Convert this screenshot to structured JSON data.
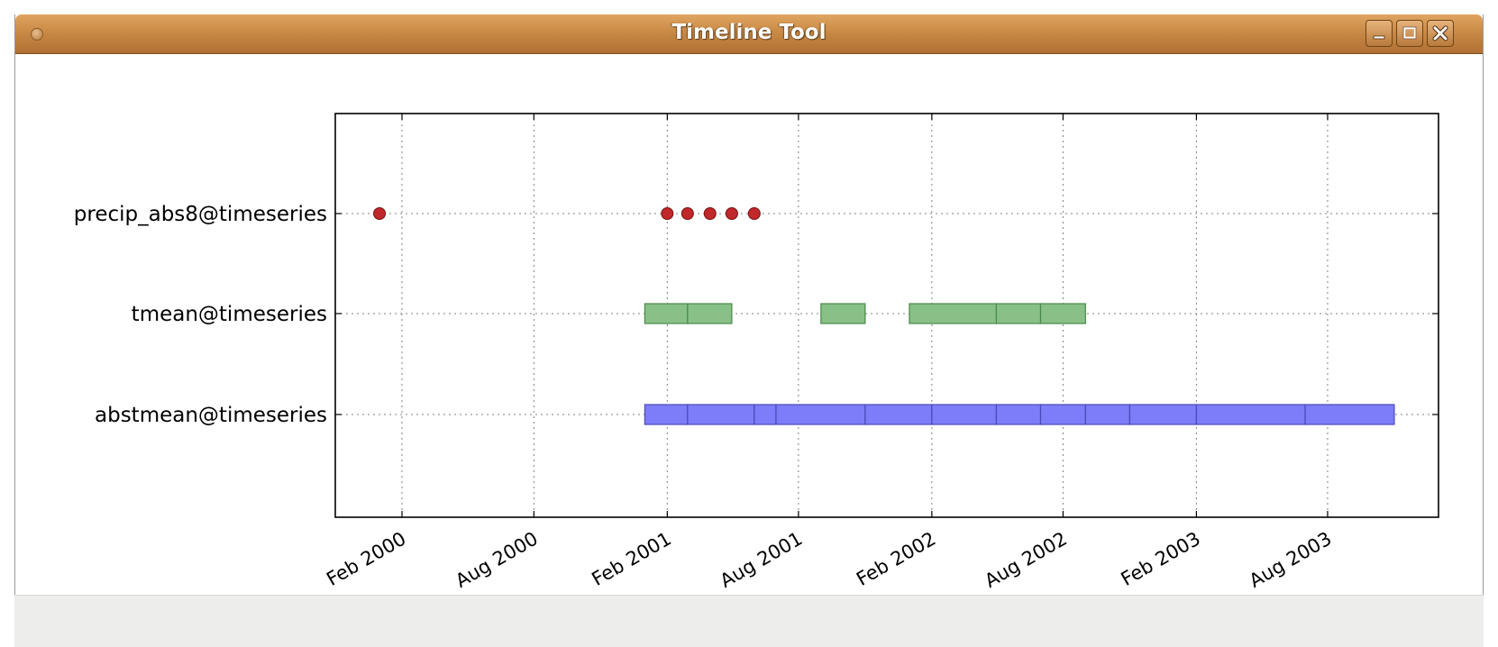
{
  "window": {
    "title": "Timeline Tool"
  },
  "chart_data": {
    "type": "scatter",
    "title": "",
    "xlabel": "",
    "ylabel": "",
    "x_axis_type": "date",
    "xlim": [
      "1999-11-01",
      "2004-01-01"
    ],
    "x_ticks": [
      "2000-02-01",
      "2000-08-01",
      "2001-02-01",
      "2001-08-01",
      "2002-02-01",
      "2002-08-01",
      "2003-02-01",
      "2003-08-01"
    ],
    "x_tick_labels": [
      "Feb 2000",
      "Aug 2000",
      "Feb 2001",
      "Aug 2001",
      "Feb 2002",
      "Aug 2002",
      "Feb 2003",
      "Aug 2003"
    ],
    "categories": [
      "precip_abs8@timeseries",
      "tmean@timeseries",
      "abstmean@timeseries"
    ],
    "grid": true,
    "series": [
      {
        "category": "precip_abs8@timeseries",
        "marker": "point",
        "color": "#c0282a",
        "points": [
          "2000-01-01",
          "2001-02-01",
          "2001-03-01",
          "2001-04-01",
          "2001-05-01",
          "2001-06-01"
        ]
      },
      {
        "category": "tmean@timeseries",
        "marker": "bar",
        "color": "#88c088",
        "edge": "#4a8a4a",
        "intervals": [
          [
            "2001-01-01",
            "2001-03-01"
          ],
          [
            "2001-03-01",
            "2001-05-01"
          ],
          [
            "2001-09-01",
            "2001-11-01"
          ],
          [
            "2002-01-01",
            "2002-05-01"
          ],
          [
            "2002-05-01",
            "2002-07-01"
          ],
          [
            "2002-07-01",
            "2002-09-01"
          ]
        ]
      },
      {
        "category": "abstmean@timeseries",
        "marker": "bar",
        "color": "#7d7dfa",
        "edge": "#4a4ab5",
        "intervals": [
          [
            "2001-01-01",
            "2001-03-01"
          ],
          [
            "2001-03-01",
            "2001-06-01"
          ],
          [
            "2001-06-01",
            "2001-07-01"
          ],
          [
            "2001-07-01",
            "2001-11-01"
          ],
          [
            "2001-11-01",
            "2002-02-01"
          ],
          [
            "2002-02-01",
            "2002-05-01"
          ],
          [
            "2002-05-01",
            "2002-07-01"
          ],
          [
            "2002-07-01",
            "2002-09-01"
          ],
          [
            "2002-09-01",
            "2002-11-01"
          ],
          [
            "2002-11-01",
            "2003-02-01"
          ],
          [
            "2003-02-01",
            "2003-07-01"
          ],
          [
            "2003-07-01",
            "2003-11-01"
          ]
        ]
      }
    ]
  }
}
